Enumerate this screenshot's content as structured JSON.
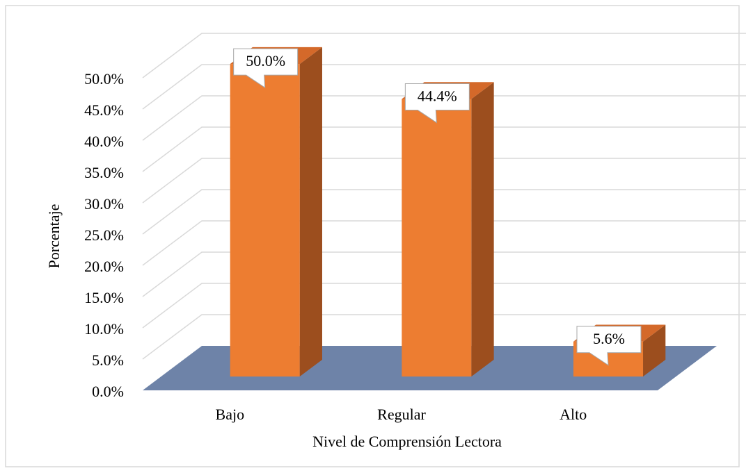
{
  "chart_data": {
    "type": "bar3d",
    "categories": [
      "Bajo",
      "Regular",
      "Alto"
    ],
    "values": [
      50.0,
      44.4,
      5.6
    ],
    "value_labels": [
      "50.0%",
      "44.4%",
      "5.6%"
    ],
    "color": "#ed7d31",
    "xlabel": "Nivel de Comprensión Lectora",
    "ylabel": "Porcentaje",
    "ylim": [
      0,
      50
    ],
    "yticks": [
      {
        "value": 0,
        "label": "0.0%"
      },
      {
        "value": 5,
        "label": "5.0%"
      },
      {
        "value": 10,
        "label": "10.0%"
      },
      {
        "value": 15,
        "label": "15.0%"
      },
      {
        "value": 20,
        "label": "20.0%"
      },
      {
        "value": 25,
        "label": "25.0%"
      },
      {
        "value": 30,
        "label": "30.0%"
      },
      {
        "value": 35,
        "label": "35.0%"
      },
      {
        "value": 40,
        "label": "40.0%"
      },
      {
        "value": 45,
        "label": "45.0%"
      },
      {
        "value": 50,
        "label": "50.0%"
      }
    ],
    "grid": true
  }
}
